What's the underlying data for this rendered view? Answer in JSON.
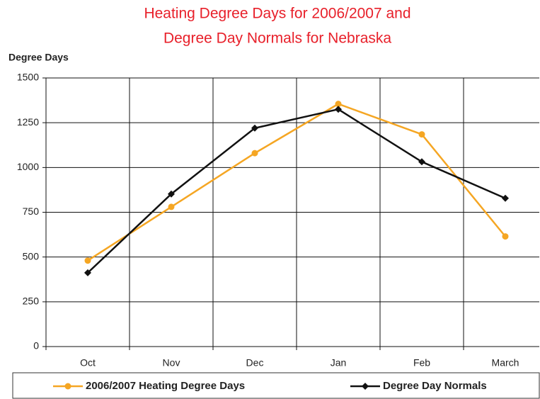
{
  "chart_data": {
    "type": "line",
    "title": [
      "Heating Degree Days for 2006/2007 and",
      "Degree Day Normals for Nebraska"
    ],
    "y_label": "Degree Days",
    "categories": [
      "Oct",
      "Nov",
      "Dec",
      "Jan",
      "Feb",
      "March"
    ],
    "series": [
      {
        "name": "2006/2007 Heating Degree Days",
        "color": "#f5a623",
        "values": [
          480,
          780,
          1080,
          1355,
          1185,
          615
        ]
      },
      {
        "name": "Degree Day Normals",
        "color": "#111111",
        "values": [
          412,
          852,
          1220,
          1325,
          1032,
          828
        ]
      }
    ],
    "ylim": [
      0,
      1500
    ],
    "yticks": [
      0,
      250,
      500,
      750,
      1000,
      1250,
      1500
    ],
    "grid": true
  }
}
